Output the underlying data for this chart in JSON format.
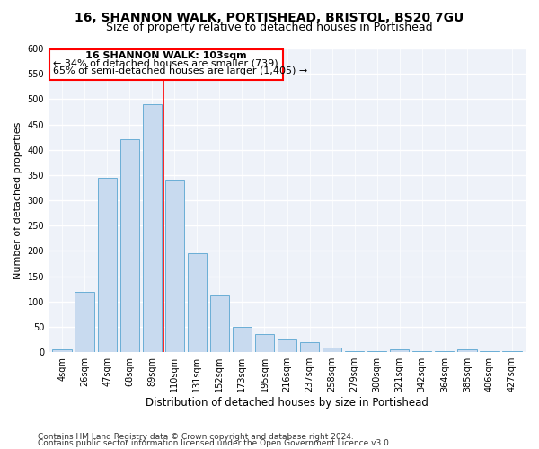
{
  "title": "16, SHANNON WALK, PORTISHEAD, BRISTOL, BS20 7GU",
  "subtitle": "Size of property relative to detached houses in Portishead",
  "xlabel": "Distribution of detached houses by size in Portishead",
  "ylabel": "Number of detached properties",
  "categories": [
    "4sqm",
    "26sqm",
    "47sqm",
    "68sqm",
    "89sqm",
    "110sqm",
    "131sqm",
    "152sqm",
    "173sqm",
    "195sqm",
    "216sqm",
    "237sqm",
    "258sqm",
    "279sqm",
    "300sqm",
    "321sqm",
    "342sqm",
    "364sqm",
    "385sqm",
    "406sqm",
    "427sqm"
  ],
  "values": [
    5,
    120,
    345,
    420,
    490,
    340,
    195,
    112,
    50,
    36,
    25,
    19,
    9,
    3,
    3,
    5,
    3,
    3,
    5,
    3,
    3
  ],
  "bar_color": "#c8daef",
  "bar_edge_color": "#6aaed6",
  "reference_line_label": "16 SHANNON WALK: 103sqm",
  "annotation_line1": "← 34% of detached houses are smaller (739)",
  "annotation_line2": "65% of semi-detached houses are larger (1,405) →",
  "ylim": [
    0,
    600
  ],
  "yticks": [
    0,
    50,
    100,
    150,
    200,
    250,
    300,
    350,
    400,
    450,
    500,
    550,
    600
  ],
  "footer_line1": "Contains HM Land Registry data © Crown copyright and database right 2024.",
  "footer_line2": "Contains public sector information licensed under the Open Government Licence v3.0.",
  "background_color": "#eef2f9",
  "grid_color": "#ffffff",
  "title_fontsize": 10,
  "subtitle_fontsize": 9,
  "axis_label_fontsize": 8,
  "tick_fontsize": 7,
  "annotation_fontsize": 8,
  "footer_fontsize": 6.5
}
